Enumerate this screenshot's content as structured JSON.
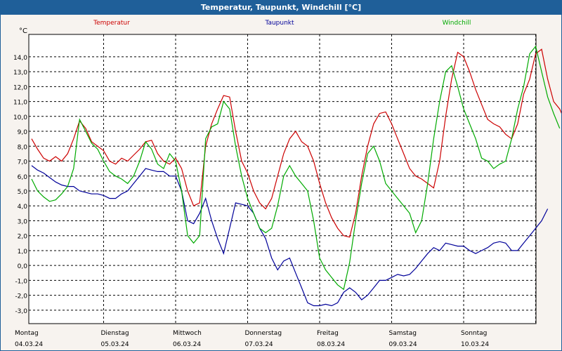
{
  "title": "Temperatur, Taupunkt, Windchill [°C]",
  "chart_data": {
    "type": "line",
    "unit_label": "°C",
    "ylim": [
      -3.9,
      15.5
    ],
    "yticks": [
      -3,
      -2,
      -1,
      0,
      1,
      2,
      3,
      4,
      5,
      6,
      7,
      8,
      9,
      10,
      11,
      12,
      13,
      14
    ],
    "ytick_labels": [
      "-3,0",
      "-2,0",
      "-1,0",
      "0,0",
      "1,0",
      "2,0",
      "3,0",
      "4,0",
      "5,0",
      "6,0",
      "7,0",
      "8,0",
      "9,0",
      "10,0",
      "11,0",
      "12,0",
      "13,0",
      "14,0"
    ],
    "x_domain_hours": [
      0,
      168
    ],
    "day_labels": [
      {
        "day": "Montag",
        "date": "04.03.24"
      },
      {
        "day": "Dienstag",
        "date": "05.03.24"
      },
      {
        "day": "Mittwoch",
        "date": "06.03.24"
      },
      {
        "day": "Donnerstag",
        "date": "07.03.24"
      },
      {
        "day": "Freitag",
        "date": "08.03.24"
      },
      {
        "day": "Samstag",
        "date": "09.03.24"
      },
      {
        "day": "Sonntag",
        "date": "10.03.24"
      }
    ],
    "grid": true,
    "legend_placement": "top",
    "series": [
      {
        "name": "Temperatur",
        "color": "#cc0000",
        "points": [
          [
            0,
            8.5
          ],
          [
            2,
            7.8
          ],
          [
            4,
            7.2
          ],
          [
            6,
            7.0
          ],
          [
            8,
            7.3
          ],
          [
            10,
            7.0
          ],
          [
            12,
            7.5
          ],
          [
            14,
            8.5
          ],
          [
            16,
            9.7
          ],
          [
            18,
            9.2
          ],
          [
            20,
            8.3
          ],
          [
            22,
            8.0
          ],
          [
            24,
            7.7
          ],
          [
            26,
            7.0
          ],
          [
            28,
            6.8
          ],
          [
            30,
            7.2
          ],
          [
            32,
            7.0
          ],
          [
            34,
            7.4
          ],
          [
            36,
            7.8
          ],
          [
            38,
            8.3
          ],
          [
            40,
            8.4
          ],
          [
            42,
            7.5
          ],
          [
            44,
            7.0
          ],
          [
            46,
            6.8
          ],
          [
            48,
            7.2
          ],
          [
            50,
            6.5
          ],
          [
            52,
            5.0
          ],
          [
            54,
            4.0
          ],
          [
            56,
            4.2
          ],
          [
            58,
            8.0
          ],
          [
            60,
            9.5
          ],
          [
            62,
            10.5
          ],
          [
            64,
            11.4
          ],
          [
            66,
            11.3
          ],
          [
            68,
            9.0
          ],
          [
            70,
            7.0
          ],
          [
            72,
            6.2
          ],
          [
            74,
            5.0
          ],
          [
            76,
            4.2
          ],
          [
            78,
            3.8
          ],
          [
            80,
            4.5
          ],
          [
            82,
            6.0
          ],
          [
            84,
            7.5
          ],
          [
            86,
            8.5
          ],
          [
            88,
            9.0
          ],
          [
            90,
            8.3
          ],
          [
            92,
            8.0
          ],
          [
            94,
            7.0
          ],
          [
            96,
            5.5
          ],
          [
            98,
            4.2
          ],
          [
            100,
            3.2
          ],
          [
            102,
            2.5
          ],
          [
            104,
            2.0
          ],
          [
            106,
            1.9
          ],
          [
            108,
            3.5
          ],
          [
            110,
            6.0
          ],
          [
            112,
            8.0
          ],
          [
            114,
            9.5
          ],
          [
            116,
            10.2
          ],
          [
            118,
            10.3
          ],
          [
            120,
            9.5
          ],
          [
            122,
            8.5
          ],
          [
            124,
            7.5
          ],
          [
            126,
            6.5
          ],
          [
            128,
            6.0
          ],
          [
            130,
            5.8
          ],
          [
            132,
            5.5
          ],
          [
            134,
            5.2
          ],
          [
            136,
            7.0
          ],
          [
            138,
            10.0
          ],
          [
            140,
            12.5
          ],
          [
            142,
            14.3
          ],
          [
            144,
            14.0
          ],
          [
            146,
            13.0
          ],
          [
            148,
            11.8
          ],
          [
            150,
            10.8
          ],
          [
            152,
            9.8
          ],
          [
            154,
            9.5
          ],
          [
            156,
            9.3
          ],
          [
            158,
            8.8
          ],
          [
            160,
            8.5
          ],
          [
            162,
            9.5
          ],
          [
            164,
            11.5
          ],
          [
            166,
            12.5
          ],
          [
            168,
            14.2
          ],
          [
            170,
            14.5
          ],
          [
            172,
            12.5
          ],
          [
            174,
            11.0
          ],
          [
            176,
            10.5
          ],
          [
            178,
            9.6
          ]
        ]
      },
      {
        "name": "Taupunkt",
        "color": "#000099",
        "points": [
          [
            0,
            6.7
          ],
          [
            2,
            6.4
          ],
          [
            4,
            6.2
          ],
          [
            6,
            5.9
          ],
          [
            8,
            5.6
          ],
          [
            10,
            5.4
          ],
          [
            12,
            5.3
          ],
          [
            14,
            5.3
          ],
          [
            16,
            5.0
          ],
          [
            18,
            4.9
          ],
          [
            20,
            4.8
          ],
          [
            22,
            4.8
          ],
          [
            24,
            4.7
          ],
          [
            26,
            4.5
          ],
          [
            28,
            4.5
          ],
          [
            30,
            4.8
          ],
          [
            32,
            5.0
          ],
          [
            34,
            5.5
          ],
          [
            36,
            6.0
          ],
          [
            38,
            6.5
          ],
          [
            40,
            6.4
          ],
          [
            42,
            6.3
          ],
          [
            44,
            6.3
          ],
          [
            46,
            6.0
          ],
          [
            48,
            6.0
          ],
          [
            50,
            5.0
          ],
          [
            52,
            3.0
          ],
          [
            54,
            2.8
          ],
          [
            56,
            3.5
          ],
          [
            58,
            4.5
          ],
          [
            60,
            3.0
          ],
          [
            62,
            1.8
          ],
          [
            64,
            0.8
          ],
          [
            66,
            2.5
          ],
          [
            68,
            4.2
          ],
          [
            70,
            4.1
          ],
          [
            72,
            4.0
          ],
          [
            74,
            3.5
          ],
          [
            76,
            2.5
          ],
          [
            78,
            1.8
          ],
          [
            80,
            0.5
          ],
          [
            82,
            -0.3
          ],
          [
            84,
            0.3
          ],
          [
            86,
            0.5
          ],
          [
            88,
            -0.5
          ],
          [
            90,
            -1.5
          ],
          [
            92,
            -2.5
          ],
          [
            94,
            -2.7
          ],
          [
            96,
            -2.7
          ],
          [
            98,
            -2.6
          ],
          [
            100,
            -2.7
          ],
          [
            102,
            -2.5
          ],
          [
            104,
            -1.8
          ],
          [
            106,
            -1.5
          ],
          [
            108,
            -1.8
          ],
          [
            110,
            -2.3
          ],
          [
            112,
            -2.0
          ],
          [
            114,
            -1.5
          ],
          [
            116,
            -1.0
          ],
          [
            118,
            -1.0
          ],
          [
            120,
            -0.8
          ],
          [
            122,
            -0.6
          ],
          [
            124,
            -0.7
          ],
          [
            126,
            -0.6
          ],
          [
            128,
            -0.2
          ],
          [
            130,
            0.3
          ],
          [
            132,
            0.8
          ],
          [
            134,
            1.2
          ],
          [
            136,
            1.0
          ],
          [
            138,
            1.5
          ],
          [
            140,
            1.4
          ],
          [
            142,
            1.3
          ],
          [
            144,
            1.3
          ],
          [
            146,
            1.0
          ],
          [
            148,
            0.8
          ],
          [
            150,
            1.0
          ],
          [
            152,
            1.2
          ],
          [
            154,
            1.5
          ],
          [
            156,
            1.6
          ],
          [
            158,
            1.5
          ],
          [
            160,
            1.0
          ],
          [
            162,
            1.0
          ],
          [
            164,
            1.5
          ],
          [
            166,
            2.0
          ],
          [
            168,
            2.5
          ],
          [
            170,
            3.0
          ],
          [
            172,
            3.8
          ]
        ]
      },
      {
        "name": "Windchill",
        "color": "#00aa00",
        "points": [
          [
            0,
            5.8
          ],
          [
            2,
            5.0
          ],
          [
            4,
            4.6
          ],
          [
            6,
            4.3
          ],
          [
            8,
            4.4
          ],
          [
            10,
            4.8
          ],
          [
            12,
            5.3
          ],
          [
            14,
            6.5
          ],
          [
            16,
            9.8
          ],
          [
            18,
            9.0
          ],
          [
            20,
            8.2
          ],
          [
            22,
            7.8
          ],
          [
            24,
            7.0
          ],
          [
            26,
            6.3
          ],
          [
            28,
            6.0
          ],
          [
            30,
            5.8
          ],
          [
            32,
            5.5
          ],
          [
            34,
            6.0
          ],
          [
            36,
            7.0
          ],
          [
            38,
            8.3
          ],
          [
            40,
            7.8
          ],
          [
            42,
            6.8
          ],
          [
            44,
            6.5
          ],
          [
            46,
            7.5
          ],
          [
            48,
            7.0
          ],
          [
            50,
            5.0
          ],
          [
            52,
            2.0
          ],
          [
            54,
            1.5
          ],
          [
            56,
            2.0
          ],
          [
            58,
            8.5
          ],
          [
            60,
            9.3
          ],
          [
            62,
            9.5
          ],
          [
            64,
            11.0
          ],
          [
            66,
            10.5
          ],
          [
            68,
            8.0
          ],
          [
            70,
            6.0
          ],
          [
            72,
            4.5
          ],
          [
            74,
            3.5
          ],
          [
            76,
            2.5
          ],
          [
            78,
            2.2
          ],
          [
            80,
            2.5
          ],
          [
            82,
            4.0
          ],
          [
            84,
            6.0
          ],
          [
            86,
            6.7
          ],
          [
            88,
            6.0
          ],
          [
            90,
            5.5
          ],
          [
            92,
            5.0
          ],
          [
            94,
            3.0
          ],
          [
            96,
            0.5
          ],
          [
            98,
            -0.3
          ],
          [
            100,
            -0.8
          ],
          [
            102,
            -1.3
          ],
          [
            104,
            -1.6
          ],
          [
            106,
            0.2
          ],
          [
            108,
            3.0
          ],
          [
            110,
            5.5
          ],
          [
            112,
            7.5
          ],
          [
            114,
            8.0
          ],
          [
            116,
            7.0
          ],
          [
            118,
            5.5
          ],
          [
            120,
            5.0
          ],
          [
            122,
            4.5
          ],
          [
            124,
            4.0
          ],
          [
            126,
            3.5
          ],
          [
            128,
            2.2
          ],
          [
            130,
            3.0
          ],
          [
            132,
            5.5
          ],
          [
            134,
            8.5
          ],
          [
            136,
            11.0
          ],
          [
            138,
            13.0
          ],
          [
            140,
            13.4
          ],
          [
            142,
            12.0
          ],
          [
            144,
            10.5
          ],
          [
            146,
            9.5
          ],
          [
            148,
            8.5
          ],
          [
            150,
            7.2
          ],
          [
            152,
            7.0
          ],
          [
            154,
            6.5
          ],
          [
            156,
            6.8
          ],
          [
            158,
            7.0
          ],
          [
            160,
            8.5
          ],
          [
            162,
            10.5
          ],
          [
            164,
            12.0
          ],
          [
            166,
            14.2
          ],
          [
            168,
            14.7
          ],
          [
            170,
            13.0
          ],
          [
            172,
            11.3
          ],
          [
            174,
            10.2
          ],
          [
            176,
            9.2
          ]
        ]
      }
    ]
  }
}
